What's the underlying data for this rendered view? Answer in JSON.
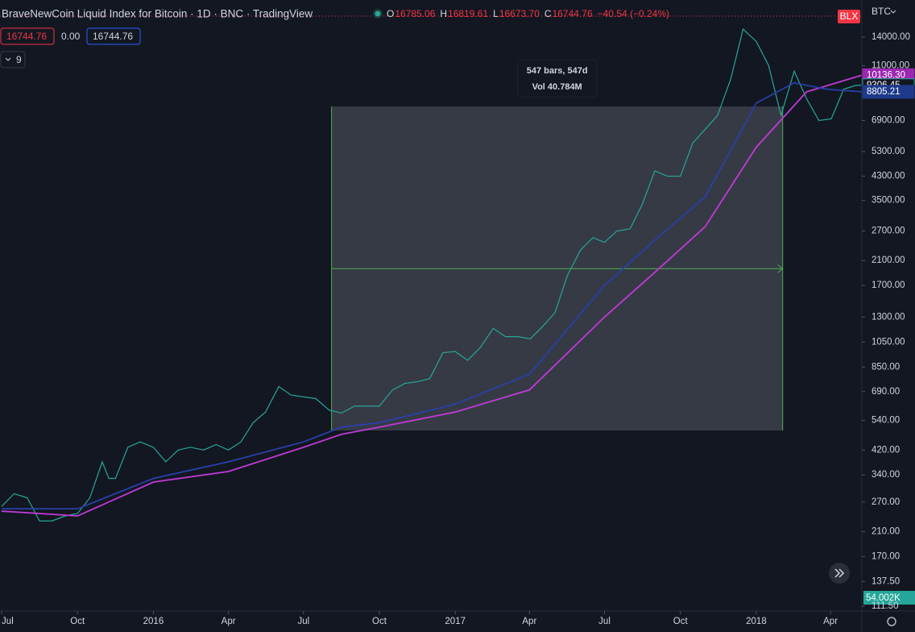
{
  "header": {
    "title": "BraveNewCoin Liquid Index for Bitcoin · 1D · BNC · TradingView",
    "ohlc": [
      {
        "label": "O",
        "value": "16785.06"
      },
      {
        "label": "H",
        "value": "16819.61"
      },
      {
        "label": "L",
        "value": "16673.70"
      },
      {
        "label": "C",
        "value": "16744.76"
      }
    ],
    "change": "−40.54 (−0.24%)",
    "price_boxes": [
      "16744.76",
      "0.00",
      "16744.76"
    ],
    "indicators": "9",
    "currency": "BTC",
    "symbol_badge": "BLX"
  },
  "chart_data": {
    "type": "line",
    "log_scale": true,
    "xlim": [
      -2,
      1043
    ],
    "ylim": [
      107,
      19200
    ],
    "xticks": [
      {
        "value": 0,
        "label": "Jul"
      },
      {
        "value": 92,
        "label": "Oct"
      },
      {
        "value": 184,
        "label": "2016"
      },
      {
        "value": 275,
        "label": "Apr"
      },
      {
        "value": 366,
        "label": "Jul"
      },
      {
        "value": 458,
        "label": "Oct"
      },
      {
        "value": 550,
        "label": "2017"
      },
      {
        "value": 640,
        "label": "Apr"
      },
      {
        "value": 731,
        "label": "Jul"
      },
      {
        "value": 823,
        "label": "Oct"
      },
      {
        "value": 915,
        "label": "2018"
      },
      {
        "value": 1005,
        "label": "Apr"
      }
    ],
    "yticks": [
      {
        "value": 14000,
        "label": "14000.00"
      },
      {
        "value": 11000,
        "label": "11000.00"
      },
      {
        "value": 6900,
        "label": "6900.00"
      },
      {
        "value": 5300,
        "label": "5300.00"
      },
      {
        "value": 4300,
        "label": "4300.00"
      },
      {
        "value": 3500,
        "label": "3500.00"
      },
      {
        "value": 2700,
        "label": "2700.00"
      },
      {
        "value": 2100,
        "label": "2100.00"
      },
      {
        "value": 1700,
        "label": "1700.00"
      },
      {
        "value": 1300,
        "label": "1300.00"
      },
      {
        "value": 1050,
        "label": "1050.00"
      },
      {
        "value": 850,
        "label": "850.00"
      },
      {
        "value": 690,
        "label": "690.00"
      },
      {
        "value": 540,
        "label": "540.00"
      },
      {
        "value": 420,
        "label": "420.00"
      },
      {
        "value": 340,
        "label": "340.00"
      },
      {
        "value": 270,
        "label": "270.00"
      },
      {
        "value": 210,
        "label": "210.00"
      },
      {
        "value": 170,
        "label": "170.00"
      },
      {
        "value": 137.5,
        "label": "137.50"
      },
      {
        "value": 111.5,
        "label": "111.50"
      }
    ],
    "series": [
      {
        "color": "#26a69a",
        "x": [
          0,
          15,
          31,
          46,
          61,
          77,
          92,
          107,
          122,
          130,
          138,
          153,
          168,
          184,
          199,
          214,
          229,
          245,
          260,
          275,
          290,
          305,
          320,
          336,
          351,
          366,
          381,
          397,
          412,
          428,
          443,
          458,
          474,
          489,
          504,
          519,
          535,
          550,
          565,
          580,
          596,
          611,
          626,
          641,
          656,
          671,
          686,
          702,
          717,
          731,
          746,
          762,
          777,
          792,
          807,
          823,
          838,
          853,
          868,
          884,
          899,
          915,
          930,
          945,
          961,
          976,
          991,
          1006,
          1021,
          1036,
          1043
        ],
        "values": [
          260,
          290,
          280,
          230,
          230,
          240,
          245,
          280,
          380,
          330,
          330,
          430,
          450,
          430,
          380,
          420,
          430,
          420,
          440,
          420,
          450,
          530,
          580,
          720,
          670,
          660,
          650,
          590,
          575,
          610,
          610,
          610,
          700,
          740,
          750,
          770,
          960,
          970,
          900,
          1000,
          1180,
          1100,
          1100,
          1080,
          1200,
          1350,
          1850,
          2300,
          2550,
          2450,
          2700,
          2750,
          3400,
          4500,
          4300,
          4300,
          5700,
          6400,
          7200,
          9800,
          15000,
          13500,
          11000,
          7200,
          10500,
          8300,
          6900,
          7000,
          9000,
          9300,
          9306.45
        ]
      },
      {
        "color": "#c03ad6",
        "x": [
          0,
          92,
          184,
          275,
          366,
          412,
          458,
          550,
          640,
          731,
          792,
          853,
          915,
          976,
          1043
        ],
        "values": [
          250,
          240,
          320,
          350,
          430,
          480,
          510,
          580,
          700,
          1300,
          1900,
          2800,
          5500,
          8800,
          10136.3
        ]
      },
      {
        "color": "#2840a8",
        "x": [
          0,
          92,
          184,
          275,
          366,
          412,
          458,
          550,
          640,
          731,
          792,
          853,
          915,
          961,
          1000,
          1043
        ],
        "values": [
          255,
          255,
          330,
          380,
          450,
          510,
          530,
          620,
          800,
          1700,
          2500,
          3600,
          8000,
          9500,
          9000,
          8805.21
        ]
      }
    ],
    "axis_labels": [
      {
        "value": 10136.3,
        "label": "10136.30",
        "color": "#9c27b0"
      },
      {
        "value": 9306.45,
        "label": "9306.45",
        "color": "#26a69a"
      },
      {
        "value": 8805.21,
        "label": "8805.21",
        "color": "#1e3a8a"
      }
    ],
    "last_price": 16744.76,
    "measure": {
      "start": 400,
      "end": 947,
      "low": 496,
      "high": 7770,
      "mid": 1960,
      "label_bars": "547 bars, 547d",
      "label_vol": "Vol 40.784M"
    },
    "volume_label": "54.002K"
  }
}
